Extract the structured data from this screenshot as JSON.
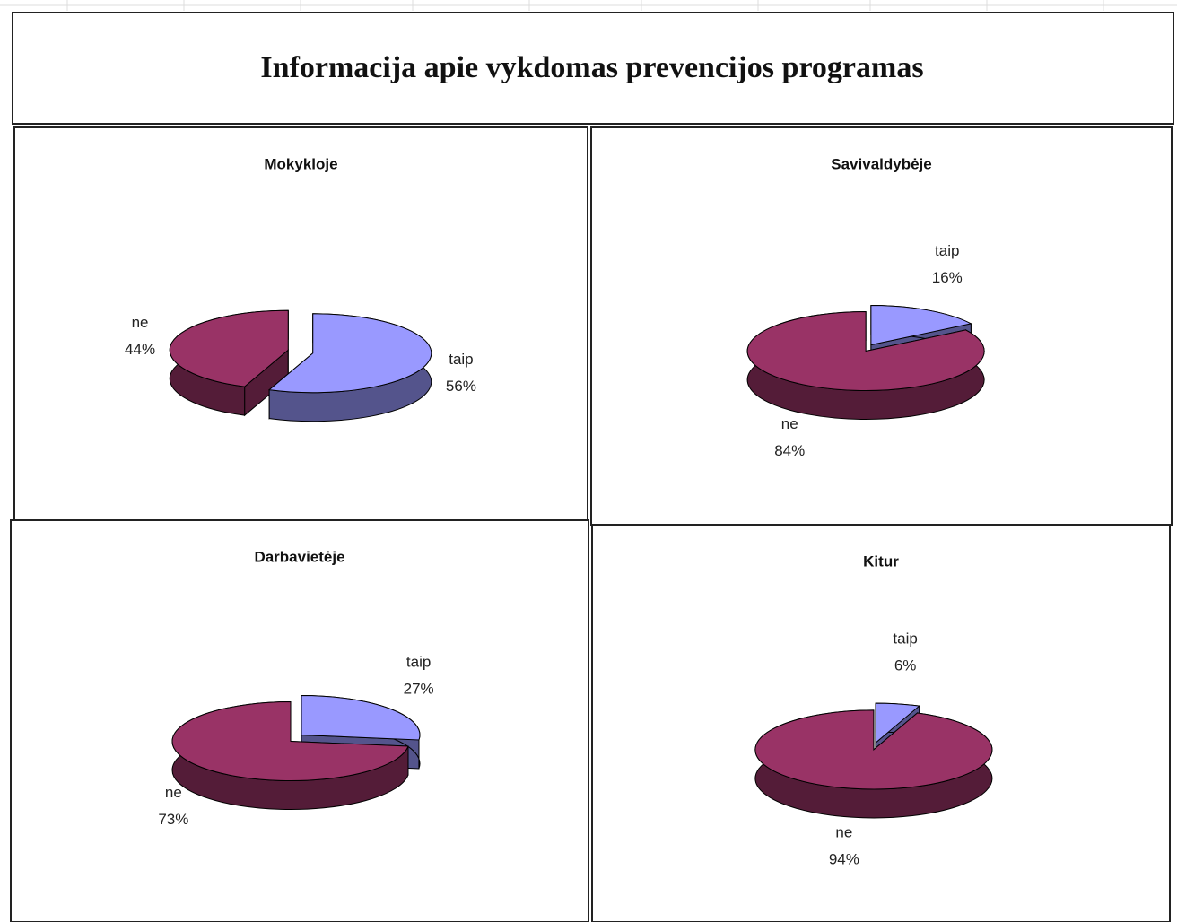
{
  "title": "Informacija apie vykdomas prevencijos programas",
  "chart_data": [
    {
      "type": "pie",
      "title": "Mokykloje",
      "categories": [
        "taip",
        "ne"
      ],
      "values": [
        56,
        44
      ],
      "value_labels": [
        "56%",
        "44%"
      ],
      "colors": [
        "#9999ff",
        "#993366"
      ]
    },
    {
      "type": "pie",
      "title": "Savivaldybėje",
      "categories": [
        "taip",
        "ne"
      ],
      "values": [
        16,
        84
      ],
      "value_labels": [
        "16%",
        "84%"
      ],
      "colors": [
        "#9999ff",
        "#993366"
      ]
    },
    {
      "type": "pie",
      "title": "Darbavietėje",
      "categories": [
        "taip",
        "ne"
      ],
      "values": [
        27,
        73
      ],
      "value_labels": [
        "27%",
        "73%"
      ],
      "colors": [
        "#9999ff",
        "#993366"
      ]
    },
    {
      "type": "pie",
      "title": "Kitur",
      "categories": [
        "taip",
        "ne"
      ],
      "values": [
        6,
        94
      ],
      "value_labels": [
        "6%",
        "94%"
      ],
      "colors": [
        "#9999ff",
        "#993366"
      ]
    }
  ]
}
